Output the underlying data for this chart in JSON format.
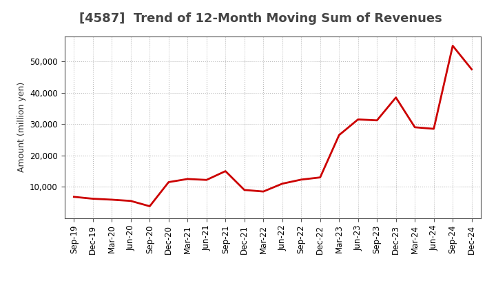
{
  "title": "[4587]  Trend of 12-Month Moving Sum of Revenues",
  "ylabel": "Amount (million yen)",
  "line_color": "#cc0000",
  "line_width": 2.0,
  "background_color": "#ffffff",
  "grid_color": "#aaaaaa",
  "ylim": [
    0,
    58000
  ],
  "yticks": [
    10000,
    20000,
    30000,
    40000,
    50000
  ],
  "labels": [
    "Sep-19",
    "Dec-19",
    "Mar-20",
    "Jun-20",
    "Sep-20",
    "Dec-20",
    "Mar-21",
    "Jun-21",
    "Sep-21",
    "Dec-21",
    "Mar-22",
    "Jun-22",
    "Sep-22",
    "Dec-22",
    "Mar-23",
    "Jun-23",
    "Sep-23",
    "Dec-23",
    "Mar-24",
    "Jun-24",
    "Sep-24",
    "Dec-24"
  ],
  "values": [
    6800,
    6200,
    5900,
    5500,
    3800,
    11500,
    12500,
    12200,
    15000,
    9000,
    8500,
    11000,
    12300,
    13000,
    26500,
    31500,
    31200,
    38500,
    29000,
    28500,
    55000,
    47500
  ],
  "title_fontsize": 13,
  "title_color": "#444444",
  "tick_fontsize": 8.5,
  "ylabel_fontsize": 9
}
